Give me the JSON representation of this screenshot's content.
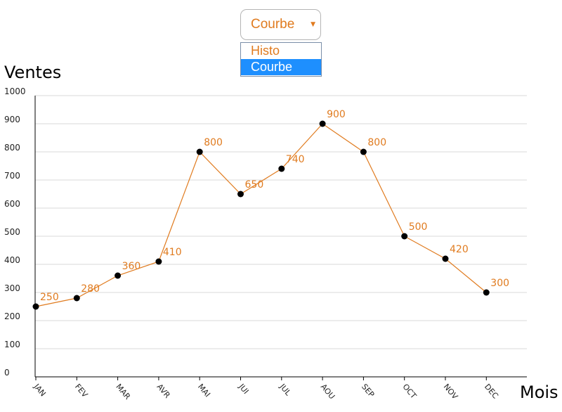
{
  "chart_type_selector": {
    "selected": "Courbe",
    "options": [
      "Histo",
      "Courbe"
    ],
    "selected_index": 1
  },
  "chart_data": {
    "type": "line",
    "ylabel": "Ventes",
    "xlabel": "Mois",
    "categories": [
      "JAN",
      "FEV",
      "MAR",
      "AVR",
      "MAI",
      "JUI",
      "JUL",
      "AOU",
      "SEP",
      "OCT",
      "NOV",
      "DEC"
    ],
    "values": [
      250,
      280,
      360,
      410,
      800,
      650,
      740,
      900,
      800,
      500,
      420,
      300
    ],
    "ylim": [
      0,
      1000
    ],
    "yticks": [
      "0",
      "100",
      "200",
      "300",
      "400",
      "500",
      "600",
      "700",
      "800",
      "900",
      "1000"
    ],
    "grid": true,
    "colors": {
      "line": "#e07b1f",
      "points": "#000000",
      "labels": "#e07b1f"
    }
  }
}
